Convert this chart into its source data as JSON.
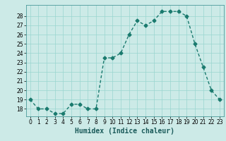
{
  "x": [
    0,
    1,
    2,
    3,
    4,
    5,
    6,
    7,
    8,
    9,
    10,
    11,
    12,
    13,
    14,
    15,
    16,
    17,
    18,
    19,
    20,
    21,
    22,
    23
  ],
  "y": [
    19,
    18,
    18,
    17.5,
    17.5,
    18.5,
    18.5,
    18,
    18,
    23.5,
    23.5,
    24,
    26,
    27.5,
    27,
    27.5,
    28.5,
    28.5,
    28.5,
    28,
    25,
    22.5,
    20,
    19
  ],
  "line_color": "#1a7a6e",
  "marker": "D",
  "marker_size": 2.5,
  "line_width": 1.0,
  "xlabel": "Humidex (Indice chaleur)",
  "ylabel": "",
  "xlim": [
    -0.5,
    23.5
  ],
  "ylim": [
    17.2,
    29.2
  ],
  "yticks": [
    18,
    19,
    20,
    21,
    22,
    23,
    24,
    25,
    26,
    27,
    28
  ],
  "xticks": [
    0,
    1,
    2,
    3,
    4,
    5,
    6,
    7,
    8,
    9,
    10,
    11,
    12,
    13,
    14,
    15,
    16,
    17,
    18,
    19,
    20,
    21,
    22,
    23
  ],
  "bg_color": "#cceae7",
  "grid_color": "#99d5d0",
  "tick_label_fontsize": 5.5,
  "xlabel_fontsize": 7.0
}
